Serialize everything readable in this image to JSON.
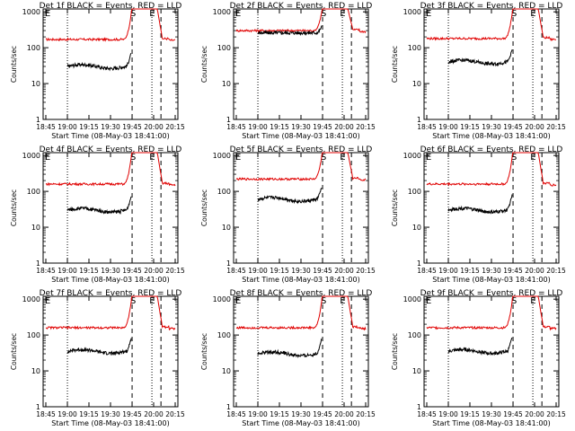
{
  "figure": {
    "x_axis_title": "Start Time (08-May-03 18:41:00)",
    "y_axis_title": "Counts/sec",
    "colors": {
      "events": "#000000",
      "lld": "#e00000",
      "axes": "#000000",
      "background": "#ffffff"
    }
  },
  "chart_data": [
    {
      "type": "line",
      "title": "Det 1f BLACK = Events, RED = LLD",
      "markers": [
        "E",
        "S",
        "E"
      ],
      "x_ticks": [
        "18:45",
        "19:00",
        "19:15",
        "19:30",
        "19:45",
        "20:00",
        "20:15"
      ],
      "y_ticks": [
        "1000",
        "100",
        "10",
        "1"
      ],
      "ylim": [
        1,
        1000
      ],
      "y_scale": "log",
      "legend_note": "BLACK = Events, RED = LLD",
      "series": [
        {
          "name": "Events",
          "values_note": "~30 counts/sec, rising near 19:45"
        },
        {
          "name": "LLD",
          "values_note": "~170 counts/sec, peaks >1000 at 19:45-20:08"
        }
      ]
    },
    {
      "type": "line",
      "title": "Det 2f BLACK = Events, RED = LLD",
      "markers": [
        "E",
        "S",
        "E"
      ],
      "x_ticks": [
        "18:45",
        "19:00",
        "19:15",
        "19:30",
        "19:45",
        "20:00",
        "20:15"
      ],
      "y_ticks": [
        "1000",
        "100",
        "10",
        "1"
      ],
      "ylim": [
        1,
        1000
      ],
      "y_scale": "log",
      "legend_note": "BLACK = Events, RED = LLD",
      "series": [
        {
          "name": "Events",
          "values_note": "~260 counts/sec"
        },
        {
          "name": "LLD",
          "values_note": "~300 counts/sec"
        }
      ]
    },
    {
      "type": "line",
      "title": "Det 3f BLACK = Events, RED = LLD",
      "markers": [
        "E",
        "S",
        "E"
      ],
      "x_ticks": [
        "18:45",
        "19:00",
        "19:15",
        "19:30",
        "19:45",
        "20:00",
        "20:15"
      ],
      "y_ticks": [
        "1000",
        "100",
        "10",
        "1"
      ],
      "ylim": [
        1,
        1000
      ],
      "y_scale": "log",
      "legend_note": "BLACK = Events, RED = LLD",
      "series": [
        {
          "name": "Events",
          "values_note": "~40 counts/sec"
        },
        {
          "name": "LLD",
          "values_note": "~180 counts/sec"
        }
      ]
    },
    {
      "type": "line",
      "title": "Det 4f BLACK = Events, RED = LLD",
      "markers": [
        "E",
        "S",
        "E"
      ],
      "x_ticks": [
        "18:45",
        "19:00",
        "19:15",
        "19:30",
        "19:45",
        "20:00",
        "20:15"
      ],
      "y_ticks": [
        "1000",
        "100",
        "10",
        "1"
      ],
      "ylim": [
        1,
        1000
      ],
      "y_scale": "log",
      "legend_note": "BLACK = Events, RED = LLD",
      "series": [
        {
          "name": "Events",
          "values_note": "~30 counts/sec"
        },
        {
          "name": "LLD",
          "values_note": "~160 counts/sec"
        }
      ]
    },
    {
      "type": "line",
      "title": "Det 5f BLACK = Events, RED = LLD",
      "markers": [
        "E",
        "S",
        "E"
      ],
      "x_ticks": [
        "18:45",
        "19:00",
        "19:15",
        "19:30",
        "19:45",
        "20:00",
        "20:15"
      ],
      "y_ticks": [
        "1000",
        "100",
        "10",
        "1"
      ],
      "ylim": [
        1,
        1000
      ],
      "y_scale": "log",
      "legend_note": "BLACK = Events, RED = LLD",
      "series": [
        {
          "name": "Events",
          "values_note": "~60 counts/sec"
        },
        {
          "name": "LLD",
          "values_note": "~220 counts/sec"
        }
      ]
    },
    {
      "type": "line",
      "title": "Det 6f BLACK = Events, RED = LLD",
      "markers": [
        "E",
        "S",
        "E"
      ],
      "x_ticks": [
        "18:45",
        "19:00",
        "19:15",
        "19:30",
        "19:45",
        "20:00",
        "20:15"
      ],
      "y_ticks": [
        "1000",
        "100",
        "10",
        "1"
      ],
      "ylim": [
        1,
        1000
      ],
      "y_scale": "log",
      "legend_note": "BLACK = Events, RED = LLD",
      "series": [
        {
          "name": "Events",
          "values_note": "~30 counts/sec"
        },
        {
          "name": "LLD",
          "values_note": "~160 counts/sec"
        }
      ]
    },
    {
      "type": "line",
      "title": "Det 7f BLACK = Events, RED = LLD",
      "markers": [
        "E",
        "S",
        "E"
      ],
      "x_ticks": [
        "18:45",
        "19:00",
        "19:15",
        "19:30",
        "19:45",
        "20:00",
        "20:15"
      ],
      "y_ticks": [
        "1000",
        "100",
        "10",
        "1"
      ],
      "ylim": [
        1,
        1000
      ],
      "y_scale": "log",
      "legend_note": "BLACK = Events, RED = LLD",
      "series": [
        {
          "name": "Events",
          "values_note": "~35 counts/sec"
        },
        {
          "name": "LLD",
          "values_note": "~160 counts/sec"
        }
      ]
    },
    {
      "type": "line",
      "title": "Det 8f BLACK = Events, RED = LLD",
      "markers": [
        "E",
        "S",
        "E"
      ],
      "x_ticks": [
        "18:45",
        "19:00",
        "19:15",
        "19:30",
        "19:45",
        "20:00",
        "20:15"
      ],
      "y_ticks": [
        "1000",
        "100",
        "10",
        "1"
      ],
      "ylim": [
        1,
        1000
      ],
      "y_scale": "log",
      "legend_note": "BLACK = Events, RED = LLD",
      "series": [
        {
          "name": "Events",
          "values_note": "~30 counts/sec"
        },
        {
          "name": "LLD",
          "values_note": "~160 counts/sec"
        }
      ]
    },
    {
      "type": "line",
      "title": "Det 9f BLACK = Events, RED = LLD",
      "markers": [
        "E",
        "S",
        "E"
      ],
      "x_ticks": [
        "18:45",
        "19:00",
        "19:15",
        "19:30",
        "19:45",
        "20:00",
        "20:15"
      ],
      "y_ticks": [
        "1000",
        "100",
        "10",
        "1"
      ],
      "ylim": [
        1,
        1000
      ],
      "y_scale": "log",
      "legend_note": "BLACK = Events, RED = LLD",
      "series": [
        {
          "name": "Events",
          "values_note": "~35 counts/sec"
        },
        {
          "name": "LLD",
          "values_note": "~160 counts/sec"
        }
      ]
    }
  ],
  "panel_params": [
    {
      "ev": 30,
      "lld": 170,
      "ev_end": 50,
      "lld_start_rise": 0.6,
      "flat": false
    },
    {
      "ev": 260,
      "lld": 300,
      "ev_end": 280,
      "lld_start_rise": 0.6,
      "flat": true
    },
    {
      "ev": 40,
      "lld": 180,
      "ev_end": 60,
      "lld_start_rise": 0.6,
      "flat": false
    },
    {
      "ev": 30,
      "lld": 160,
      "ev_end": 50,
      "lld_start_rise": 0.6,
      "flat": false
    },
    {
      "ev": 60,
      "lld": 220,
      "ev_end": 90,
      "lld_start_rise": 0.6,
      "flat": false
    },
    {
      "ev": 30,
      "lld": 160,
      "ev_end": 55,
      "lld_start_rise": 0.6,
      "flat": false
    },
    {
      "ev": 35,
      "lld": 160,
      "ev_end": 55,
      "lld_start_rise": 0.6,
      "flat": false
    },
    {
      "ev": 30,
      "lld": 160,
      "ev_end": 55,
      "lld_start_rise": 0.6,
      "flat": false
    },
    {
      "ev": 35,
      "lld": 160,
      "ev_end": 60,
      "lld_start_rise": 0.6,
      "flat": false
    }
  ]
}
